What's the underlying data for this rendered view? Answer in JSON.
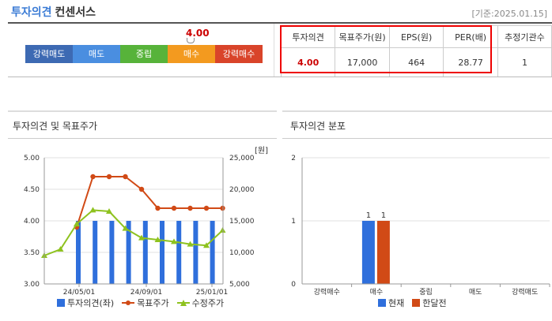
{
  "header": {
    "title": "투자의견",
    "subtitle": "컨센서스",
    "date": "[기준:2025.01.15]"
  },
  "scale": {
    "labels": [
      "강력매도",
      "매도",
      "중립",
      "매수",
      "강력매수"
    ],
    "colors": [
      "#3d6ab3",
      "#4a8ee0",
      "#57b33a",
      "#f39a1f",
      "#d9442a"
    ],
    "current_value": "4.00"
  },
  "consensus_table": {
    "headers": [
      "투자의견",
      "목표주가(원)",
      "EPS(원)",
      "PER(배)",
      "추정기관수"
    ],
    "values": [
      "4.00",
      "17,000",
      "464",
      "28.77",
      "1"
    ]
  },
  "left_panel": {
    "title": "투자의견 및 목표주가",
    "unit": "[원]",
    "legend": [
      "투자의견(좌)",
      "목표주가",
      "수정주가"
    ]
  },
  "right_panel": {
    "title": "투자의견 분포",
    "legend": [
      "현재",
      "한달전"
    ]
  },
  "chart_data": [
    {
      "type": "bar+line",
      "left_axis": {
        "range": [
          3.0,
          5.0
        ],
        "ticks": [
          "5.00",
          "4.50",
          "4.00",
          "3.50",
          "3.00"
        ]
      },
      "right_axis": {
        "range": [
          5000,
          25000
        ],
        "ticks": [
          "25,000",
          "20,000",
          "15,000",
          "10,000",
          "5,000"
        ]
      },
      "x_tick_labels": [
        "24/05/01",
        "24/09/01",
        "25/01/01"
      ],
      "series": [
        {
          "name": "투자의견(좌)",
          "type": "bar",
          "color": "#2f6fdc",
          "values": [
            4.0,
            4.0,
            4.0,
            4.0,
            4.0,
            4.0,
            4.0,
            4.0,
            4.0
          ]
        },
        {
          "name": "목표주가",
          "type": "line",
          "color": "#d14a16",
          "values": [
            null,
            null,
            14000,
            22000,
            22000,
            22000,
            20000,
            17000,
            17000,
            17000,
            17000,
            17000
          ]
        },
        {
          "name": "수정주가",
          "type": "line",
          "color": "#8ec21f",
          "values": [
            9500,
            10500,
            14500,
            16700,
            16500,
            13800,
            12300,
            12000,
            11700,
            11300,
            11100,
            13500
          ]
        }
      ]
    },
    {
      "type": "bar",
      "categories": [
        "강력매수",
        "매수",
        "중립",
        "매도",
        "강력매도"
      ],
      "ylim": [
        0,
        2
      ],
      "y_ticks": [
        "2",
        "1",
        "0"
      ],
      "series": [
        {
          "name": "현재",
          "color": "#2f6fdc",
          "values": [
            0,
            1,
            0,
            0,
            0
          ]
        },
        {
          "name": "한달전",
          "color": "#d14a16",
          "values": [
            0,
            1,
            0,
            0,
            0
          ]
        }
      ],
      "value_labels": [
        "1",
        "1"
      ]
    }
  ]
}
